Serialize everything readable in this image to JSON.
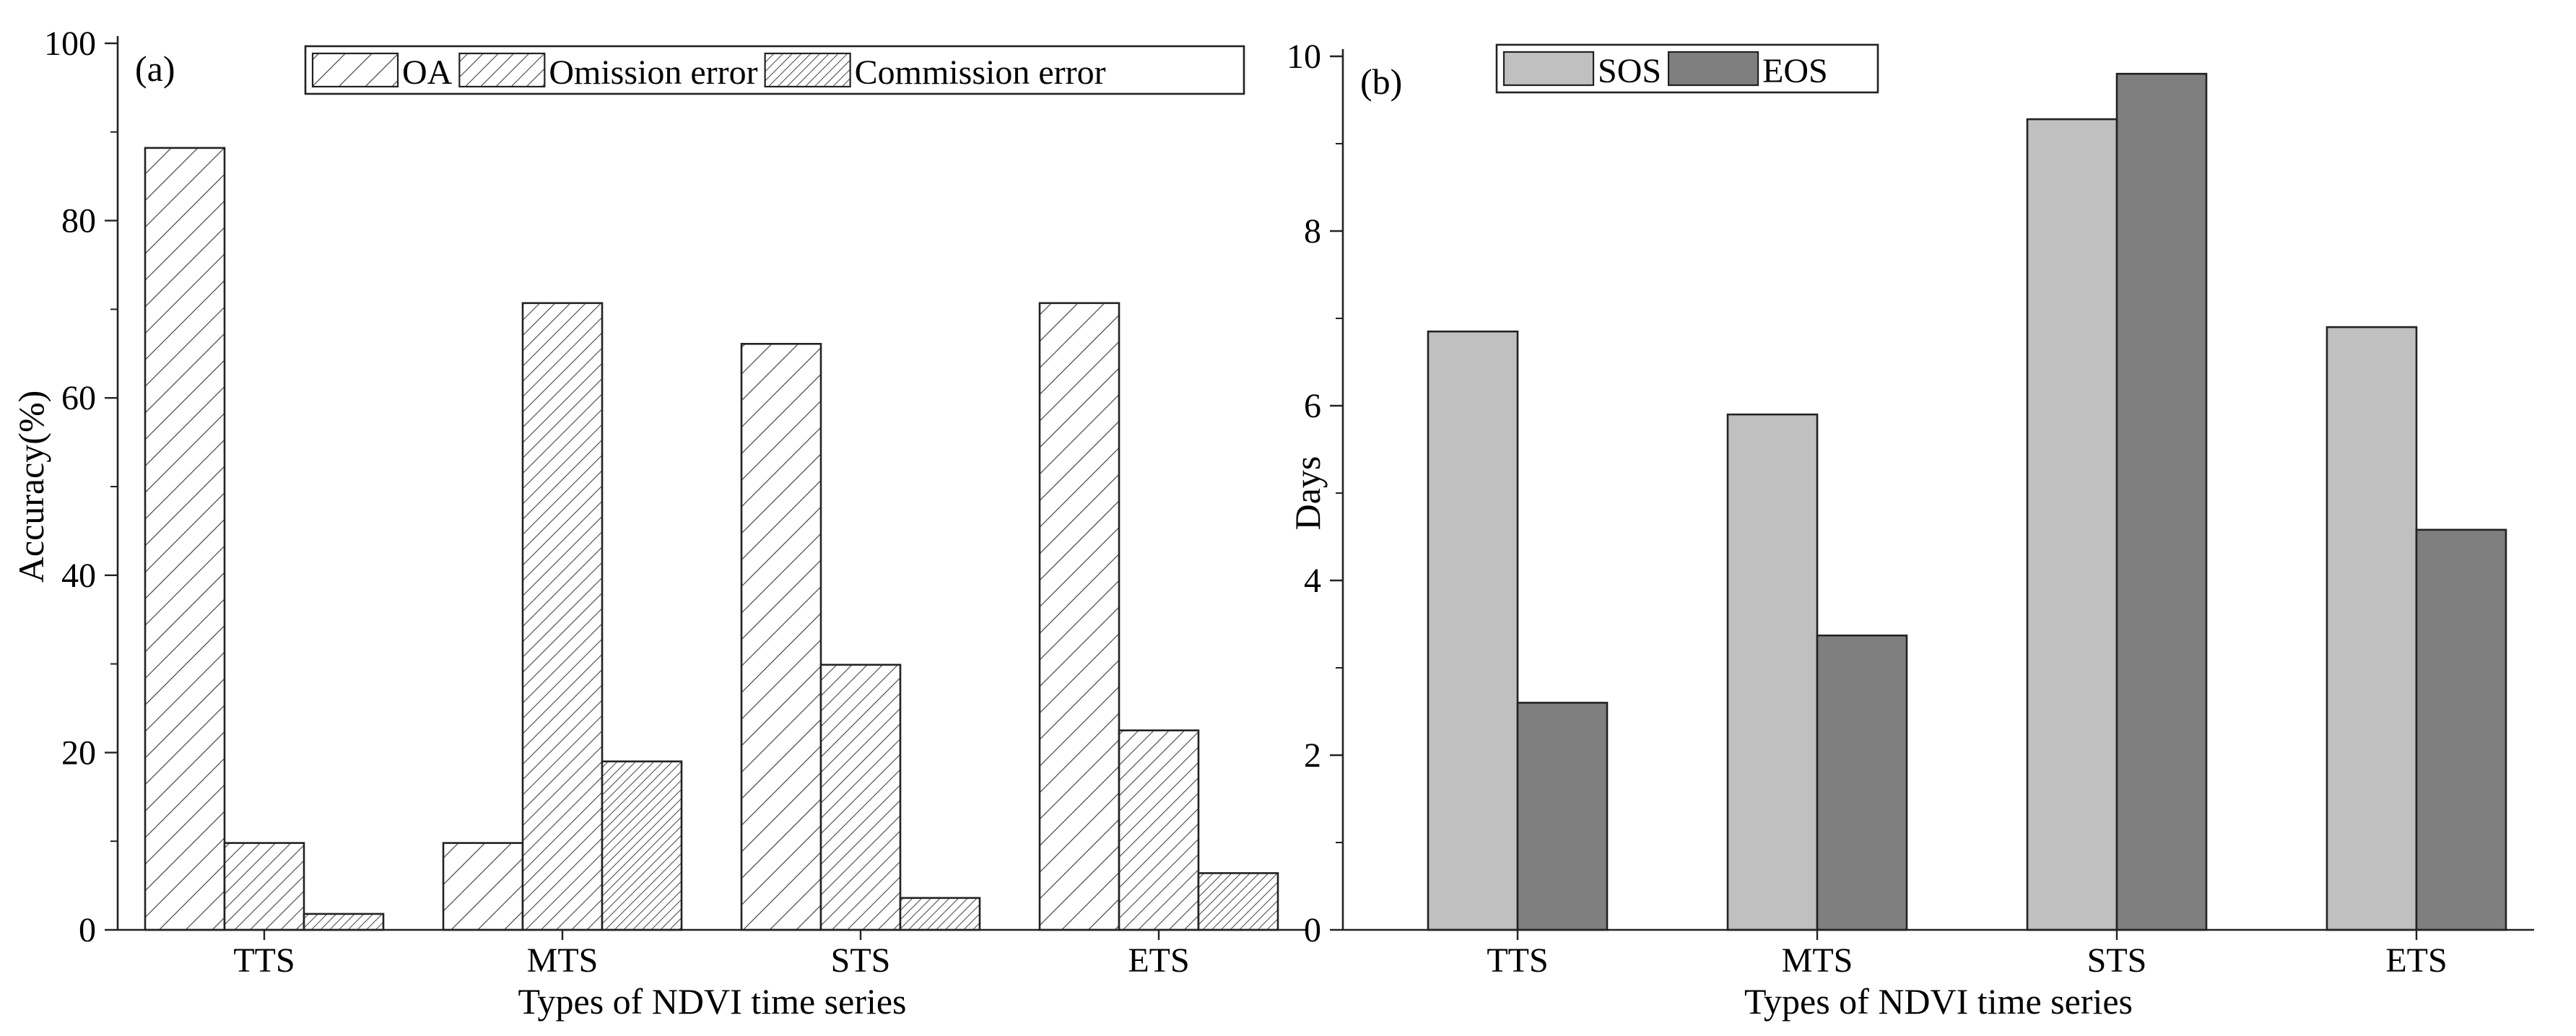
{
  "chart_data": [
    {
      "type": "bar",
      "panel_label": "(a)",
      "categories": [
        "TTS",
        "MTS",
        "STS",
        "ETS"
      ],
      "series": [
        {
          "name": "OA",
          "values": [
            88.2,
            9.8,
            66.1,
            70.7
          ],
          "pattern": "hatch-wide"
        },
        {
          "name": "Omission error",
          "values": [
            9.8,
            70.7,
            29.9,
            22.5
          ],
          "pattern": "hatch-medium"
        },
        {
          "name": "Commission error",
          "values": [
            1.8,
            19.0,
            3.6,
            6.4
          ],
          "pattern": "hatch-dense"
        }
      ],
      "xlabel": "Types of NDVI time series",
      "ylabel": "Accuracy(%)",
      "ylim": [
        0,
        100
      ],
      "yticks": [
        0,
        20,
        40,
        60,
        80,
        100
      ],
      "grid": false,
      "legend_position": "top",
      "colors": {
        "fill": "#ffffff",
        "hatch": "#444444",
        "edge": "#222222"
      }
    },
    {
      "type": "bar",
      "panel_label": "(b)",
      "categories": [
        "TTS",
        "MTS",
        "STS",
        "ETS"
      ],
      "series": [
        {
          "name": "SOS",
          "values": [
            6.85,
            5.9,
            9.28,
            6.9
          ],
          "color": "#c0c0c0"
        },
        {
          "name": "EOS",
          "values": [
            2.6,
            3.37,
            9.8,
            4.58
          ],
          "color": "#7f7f7f"
        }
      ],
      "xlabel": "Types of NDVI time series",
      "ylabel": "Days",
      "ylim": [
        0,
        10
      ],
      "yticks": [
        0,
        2,
        4,
        6,
        8,
        10
      ],
      "grid": false,
      "legend_position": "top-left"
    }
  ]
}
